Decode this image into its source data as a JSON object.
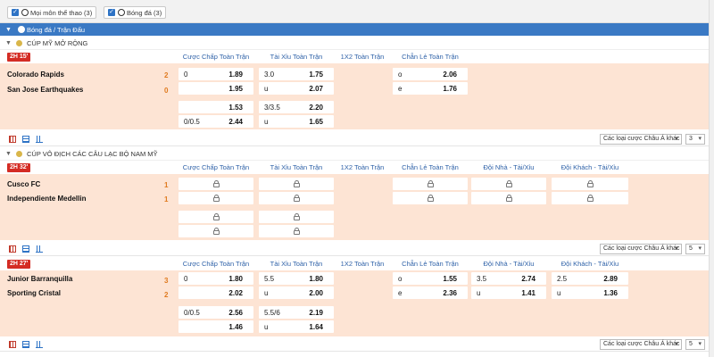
{
  "filters": {
    "all_sports": "Mọi môn thể thao (3)",
    "football": "Bóng đá (3)"
  },
  "sport_header": "Bóng đá / Trận Đấu",
  "leagues": [
    {
      "name": "CÚP MỸ MỞ RỘNG",
      "time": "2H  15'",
      "columns": [
        "Cược Chấp Toàn Trận",
        "Tài Xỉu Toàn Trận",
        "1X2 Toàn Trận",
        "Chẵn Lẻ Toàn Trận"
      ],
      "home": {
        "name": "Colorado Rapids",
        "score": "2"
      },
      "away": {
        "name": "San Jose Earthquakes",
        "score": "0"
      },
      "rows": [
        {
          "h": [
            "0",
            "1.89"
          ],
          "t": [
            "3.0",
            "1.75"
          ],
          "c": [
            "o",
            "2.06"
          ]
        },
        {
          "h": [
            "",
            "1.95"
          ],
          "t": [
            "u",
            "2.07"
          ],
          "c": [
            "e",
            "1.76"
          ]
        },
        {
          "h": [
            "",
            "1.53"
          ],
          "t": [
            "3/3.5",
            "2.20"
          ]
        },
        {
          "h": [
            "0/0.5",
            "2.44"
          ],
          "t": [
            "u",
            "1.65"
          ]
        }
      ],
      "select_label": "Các loại cược Châu Á khác",
      "count": "3"
    },
    {
      "name": "CÚP VÔ ĐỊCH CÁC CÂU LẠC BỘ NAM MỸ",
      "time": "2H  32'",
      "columns": [
        "Cược Chấp Toàn Trận",
        "Tài Xỉu Toàn Trận",
        "1X2 Toàn Trận",
        "Chẵn Lẻ Toàn Trận",
        "Đội Nhà - Tài/Xỉu",
        "Đội Khách - Tài/Xỉu"
      ],
      "home": {
        "name": "Cusco FC",
        "score": "1"
      },
      "away": {
        "name": "Independiente Medellin",
        "score": "1"
      },
      "select_label": "Các loại cược Châu Á khác",
      "count": "5"
    },
    {
      "name": "",
      "time": "2H  27'",
      "columns": [
        "Cược Chấp Toàn Trận",
        "Tài Xỉu Toàn Trận",
        "1X2 Toàn Trận",
        "Chẵn Lẻ Toàn Trận",
        "Đội Nhà - Tài/Xỉu",
        "Đội Khách - Tài/Xỉu"
      ],
      "home": {
        "name": "Junior Barranquilla",
        "score": "3"
      },
      "away": {
        "name": "Sporting Cristal",
        "score": "2"
      },
      "rows": [
        {
          "h": [
            "0",
            "1.80"
          ],
          "t": [
            "5.5",
            "1.80"
          ],
          "c": [
            "o",
            "1.55"
          ],
          "dn": [
            "3.5",
            "2.74"
          ],
          "dk": [
            "2.5",
            "2.89"
          ]
        },
        {
          "h": [
            "",
            "2.02"
          ],
          "t": [
            "u",
            "2.00"
          ],
          "c": [
            "e",
            "2.36"
          ],
          "dn": [
            "u",
            "1.41"
          ],
          "dk": [
            "u",
            "1.36"
          ]
        },
        {
          "h": [
            "0/0.5",
            "2.56"
          ],
          "t": [
            "5.5/6",
            "2.19"
          ]
        },
        {
          "h": [
            "",
            "1.46"
          ],
          "t": [
            "u",
            "1.64"
          ]
        }
      ],
      "select_label": "Các loại cược Châu Á khác",
      "count": "5"
    }
  ]
}
